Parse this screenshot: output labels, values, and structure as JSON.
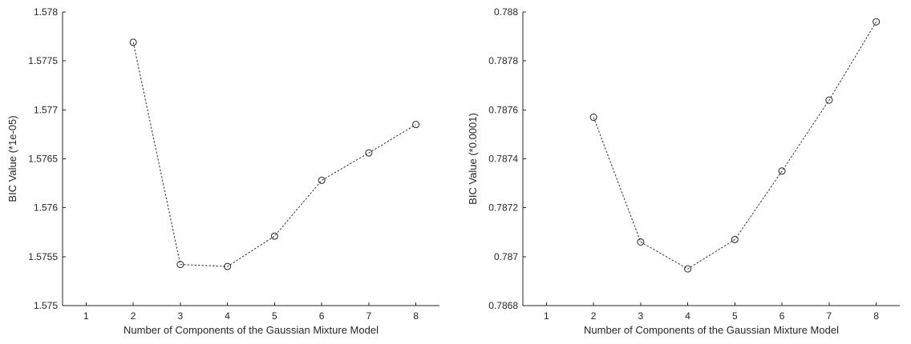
{
  "chart_data": [
    {
      "type": "line",
      "xlabel": "Number of Components of the Gaussian Mixture Model",
      "ylabel": "BIC Value (*1e-05)",
      "xlim": [
        0.5,
        8.5
      ],
      "ylim": [
        1.575,
        1.578
      ],
      "xticks": [
        1,
        2,
        3,
        4,
        5,
        6,
        7,
        8
      ],
      "yticks": [
        1.575,
        1.5755,
        1.576,
        1.5765,
        1.577,
        1.5775,
        1.578
      ],
      "ytick_labels": [
        "1.575",
        "1.5755",
        "1.576",
        "1.5765",
        "1.577",
        "1.5775",
        "1.578"
      ],
      "grid": false,
      "line_style": "dotted",
      "marker": "open-circle",
      "x": [
        2,
        3,
        4,
        5,
        6,
        7,
        8
      ],
      "y": [
        1.57769,
        1.57542,
        1.5754,
        1.57571,
        1.57628,
        1.57656,
        1.57685
      ]
    },
    {
      "type": "line",
      "xlabel": "Number of Components of the Gaussian Mixture Model",
      "ylabel": "BIC Value (*0.0001)",
      "xlim": [
        0.5,
        8.5
      ],
      "ylim": [
        0.7868,
        0.788
      ],
      "xticks": [
        1,
        2,
        3,
        4,
        5,
        6,
        7,
        8
      ],
      "yticks": [
        0.7868,
        0.787,
        0.7872,
        0.7874,
        0.7876,
        0.7878,
        0.788
      ],
      "ytick_labels": [
        "0.7868",
        "0.787",
        "0.7872",
        "0.7874",
        "0.7876",
        "0.7878",
        "0.788"
      ],
      "grid": false,
      "line_style": "dotted",
      "marker": "open-circle",
      "x": [
        2,
        3,
        4,
        5,
        6,
        7,
        8
      ],
      "y": [
        0.78757,
        0.78706,
        0.78695,
        0.78707,
        0.78735,
        0.78764,
        0.78796
      ]
    }
  ]
}
